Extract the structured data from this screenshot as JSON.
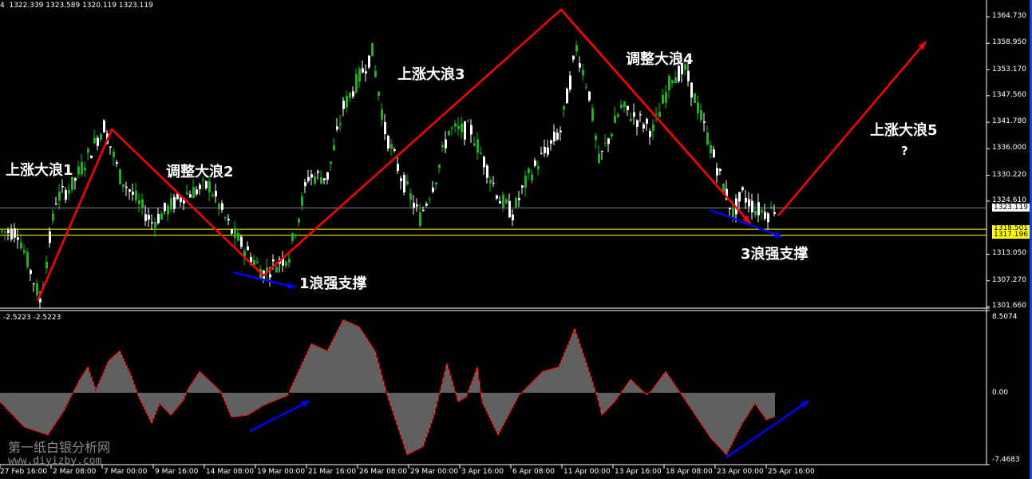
{
  "header": {
    "symbol_tail": "4",
    "ohlc": "1322.339 1323.589 1320.119 1323.119"
  },
  "indicator_header": "-2.5223 -2.5223",
  "colors": {
    "bull": "#00c800",
    "bear": "#ffffff",
    "wave": "#ff0000",
    "support_arrow": "#0000ff",
    "hline_bid": "#708090",
    "hline_support": "#ffff00",
    "histogram": "#c0c0c0",
    "signal": "#ff0000"
  },
  "price_axis": [
    "1364.730",
    "1358.950",
    "1353.170",
    "1347.560",
    "1341.780",
    "1336.000",
    "1330.220",
    "1324.610",
    "1313.050",
    "1307.270",
    "1301.660"
  ],
  "price_tags": {
    "bid": "1323.119",
    "support1": "1318.501",
    "support2": "1317.196"
  },
  "osc_axis": [
    "8.5074",
    "0.00",
    "-7.4683"
  ],
  "time_axis": [
    "27 Feb 16:00",
    "2 Mar 08:00",
    "7 Mar 00:00",
    "9 Mar 16:00",
    "14 Mar 08:00",
    "19 Mar 00:00",
    "21 Mar 16:00",
    "26 Mar 08:00",
    "29 Mar 00:00",
    "3 Apr 16:00",
    "6 Apr 08:00",
    "11 Apr 00:00",
    "13 Apr 16:00",
    "18 Apr 08:00",
    "23 Apr 00:00",
    "25 Apr 16:00"
  ],
  "annotations": {
    "w1": "上涨大浪1",
    "w2": "调整大浪2",
    "w3": "上涨大浪3",
    "w4": "调整大浪4",
    "w5": "上涨大浪5",
    "q": "?",
    "s1": "1浪强支撑",
    "s3": "3浪强支撑"
  },
  "watermark": {
    "name": "第一纸白银分析网",
    "url": "www.diyizby.com"
  },
  "chart_data": [
    {
      "type": "candlestick",
      "ylim": [
        1301.66,
        1364.73
      ],
      "price_path": [
        [
          0,
          1318
        ],
        [
          5,
          1318
        ],
        [
          12,
          1303
        ],
        [
          17,
          1325
        ],
        [
          22,
          1328
        ],
        [
          32,
          1341
        ],
        [
          37,
          1330
        ],
        [
          47,
          1320
        ],
        [
          57,
          1326
        ],
        [
          65,
          1328
        ],
        [
          72,
          1318
        ],
        [
          82,
          1309
        ],
        [
          90,
          1313
        ],
        [
          96,
          1330
        ],
        [
          102,
          1330
        ],
        [
          107,
          1345
        ],
        [
          116,
          1357
        ],
        [
          120,
          1340
        ],
        [
          125,
          1330
        ],
        [
          131,
          1321
        ],
        [
          136,
          1330
        ],
        [
          140,
          1340
        ],
        [
          147,
          1340
        ],
        [
          150,
          1335
        ],
        [
          156,
          1325
        ],
        [
          160,
          1322
        ],
        [
          165,
          1330
        ],
        [
          175,
          1340
        ],
        [
          180,
          1358
        ],
        [
          184,
          1348
        ],
        [
          187,
          1333
        ],
        [
          194,
          1345
        ],
        [
          200,
          1342
        ],
        [
          204,
          1340
        ],
        [
          210,
          1352
        ],
        [
          214,
          1353
        ],
        [
          218,
          1345
        ],
        [
          225,
          1330
        ],
        [
          229,
          1322
        ],
        [
          232,
          1326
        ],
        [
          236,
          1323
        ],
        [
          240,
          1322
        ],
        [
          242,
          1323.119
        ]
      ],
      "hlines": [
        1323.119,
        1318.501,
        1317.196
      ]
    },
    {
      "type": "histogram",
      "ylim": [
        -7.4683,
        8.5074
      ],
      "path": [
        [
          0,
          -1
        ],
        [
          15,
          -3.8
        ],
        [
          30,
          -4.7
        ],
        [
          40,
          -2
        ],
        [
          50,
          1.5
        ],
        [
          55,
          2.9
        ],
        [
          60,
          0.3
        ],
        [
          68,
          3.6
        ],
        [
          75,
          4.7
        ],
        [
          82,
          2
        ],
        [
          87,
          -0.5
        ],
        [
          95,
          -3.4
        ],
        [
          100,
          -1.2
        ],
        [
          107,
          -2.5
        ],
        [
          115,
          -0.8
        ],
        [
          118,
          0.5
        ],
        [
          125,
          2.4
        ],
        [
          138,
          0.2
        ],
        [
          145,
          -2.7
        ],
        [
          155,
          -2.5
        ],
        [
          165,
          -1.4
        ],
        [
          180,
          -0.3
        ],
        [
          195,
          5.5
        ],
        [
          205,
          4.7
        ],
        [
          215,
          8.2
        ],
        [
          225,
          7.4
        ],
        [
          235,
          4.7
        ],
        [
          243,
          -0.5
        ],
        [
          255,
          -6.9
        ],
        [
          265,
          -6
        ],
        [
          272,
          -2.5
        ],
        [
          280,
          3.3
        ],
        [
          287,
          -1
        ],
        [
          292,
          -0.5
        ],
        [
          299,
          2.9
        ],
        [
          302,
          -1
        ],
        [
          312,
          -4.7
        ],
        [
          325,
          -0.3
        ],
        [
          340,
          2.4
        ],
        [
          350,
          2.9
        ],
        [
          360,
          7.2
        ],
        [
          370,
          1.9
        ],
        [
          375,
          -1
        ],
        [
          377,
          -2.5
        ],
        [
          385,
          -1
        ],
        [
          395,
          1.5
        ],
        [
          405,
          -0.2
        ],
        [
          408,
          0.2
        ],
        [
          417,
          2.4
        ],
        [
          430,
          -1
        ],
        [
          445,
          -5
        ],
        [
          455,
          -6.9
        ],
        [
          465,
          -3.4
        ],
        [
          473,
          -1.2
        ],
        [
          480,
          -3
        ],
        [
          485,
          -2.7
        ]
      ]
    }
  ]
}
